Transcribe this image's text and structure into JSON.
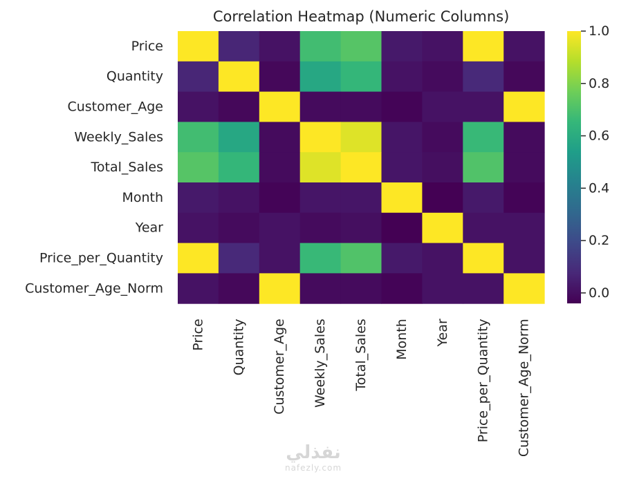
{
  "chart_data": {
    "type": "heatmap",
    "title": "Correlation Heatmap (Numeric Columns)",
    "rows": [
      "Price",
      "Quantity",
      "Customer_Age",
      "Weekly_Sales",
      "Total_Sales",
      "Month",
      "Year",
      "Price_per_Quantity",
      "Customer_Age_Norm"
    ],
    "columns": [
      "Price",
      "Quantity",
      "Customer_Age",
      "Weekly_Sales",
      "Total_Sales",
      "Month",
      "Year",
      "Price_per_Quantity",
      "Customer_Age_Norm"
    ],
    "values": [
      [
        1.0,
        0.07,
        0.01,
        0.68,
        0.72,
        0.03,
        0.01,
        1.0,
        0.01
      ],
      [
        0.07,
        1.0,
        -0.02,
        0.58,
        0.65,
        0.01,
        -0.01,
        0.08,
        -0.02
      ],
      [
        0.01,
        -0.02,
        1.0,
        -0.01,
        -0.01,
        -0.03,
        0.01,
        0.01,
        1.0
      ],
      [
        0.68,
        0.58,
        -0.01,
        1.0,
        0.95,
        0.02,
        -0.01,
        0.66,
        -0.01
      ],
      [
        0.72,
        0.65,
        -0.01,
        0.95,
        1.0,
        0.02,
        0.0,
        0.71,
        -0.01
      ],
      [
        0.03,
        0.01,
        -0.03,
        0.02,
        0.02,
        1.0,
        -0.04,
        0.03,
        -0.03
      ],
      [
        0.01,
        -0.01,
        0.01,
        -0.01,
        0.0,
        -0.04,
        1.0,
        0.01,
        0.01
      ],
      [
        1.0,
        0.08,
        0.01,
        0.66,
        0.71,
        0.03,
        0.01,
        1.0,
        0.01
      ],
      [
        0.01,
        -0.02,
        1.0,
        -0.01,
        -0.01,
        -0.03,
        0.01,
        0.01,
        1.0
      ]
    ],
    "colormap": "viridis",
    "vmin": -0.04,
    "vmax": 1.0,
    "colorbar": {
      "position": "right",
      "ticks": [
        0.0,
        0.2,
        0.4,
        0.6,
        0.8,
        1.0
      ],
      "tick_labels": [
        "0.0",
        "0.2",
        "0.4",
        "0.6",
        "0.8",
        "1.0"
      ]
    },
    "xlabel": "",
    "ylabel": "",
    "grid": false
  },
  "watermark": {
    "logo_text": "نفذلي",
    "url_text": "nafezly.com"
  }
}
